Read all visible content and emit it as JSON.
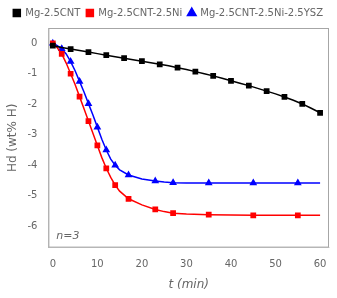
{
  "chart_data": {
    "type": "line",
    "xlabel": "t (min)",
    "ylabel": "Hd (wt% H)",
    "annotation": "n=3",
    "xlim": [
      -1,
      62
    ],
    "ylim": [
      -6.7,
      0.5
    ],
    "xticks": [
      0,
      10,
      20,
      30,
      40,
      50,
      60
    ],
    "yticks": [
      0,
      -1,
      -2,
      -3,
      -4,
      -5,
      -6
    ],
    "grid": false,
    "legend": "upper right",
    "series": [
      {
        "name": "Mg-2.5CNT",
        "color": "#000000",
        "marker": "square",
        "x": [
          0,
          2,
          4,
          6,
          8,
          10,
          12,
          14,
          16,
          18,
          20,
          22,
          24,
          26,
          28,
          30,
          32,
          34,
          36,
          38,
          40,
          42,
          44,
          46,
          48,
          50,
          52,
          54,
          56,
          58,
          60
        ],
        "values": [
          -0.08,
          -0.14,
          -0.19,
          -0.24,
          -0.29,
          -0.34,
          -0.39,
          -0.44,
          -0.49,
          -0.54,
          -0.59,
          -0.64,
          -0.69,
          -0.74,
          -0.8,
          -0.86,
          -0.93,
          -1.0,
          -1.07,
          -1.15,
          -1.23,
          -1.31,
          -1.39,
          -1.48,
          -1.57,
          -1.66,
          -1.76,
          -1.87,
          -1.99,
          -2.13,
          -2.28
        ]
      },
      {
        "name": "Mg-2.5CNT-2.5Ni",
        "color": "#ff0000",
        "marker": "square",
        "x": [
          0,
          1,
          2,
          3,
          4,
          5,
          6,
          7,
          8,
          9,
          10,
          11,
          12,
          13,
          14,
          15,
          17,
          20,
          23,
          25,
          27,
          30,
          35,
          40,
          45,
          50,
          55,
          60
        ],
        "values": [
          0.0,
          -0.15,
          -0.35,
          -0.65,
          -1.0,
          -1.35,
          -1.75,
          -2.15,
          -2.55,
          -2.95,
          -3.35,
          -3.75,
          -4.1,
          -4.4,
          -4.65,
          -4.85,
          -5.1,
          -5.3,
          -5.45,
          -5.52,
          -5.57,
          -5.6,
          -5.62,
          -5.63,
          -5.64,
          -5.64,
          -5.64,
          -5.64
        ]
      },
      {
        "name": "Mg-2.5CNT-2.5Ni-2.5YSZ",
        "color": "#0000ff",
        "marker": "triangle",
        "x": [
          0,
          1,
          2,
          3,
          4,
          5,
          6,
          7,
          8,
          9,
          10,
          11,
          12,
          13,
          14,
          15,
          17,
          20,
          23,
          25,
          27,
          30,
          35,
          40,
          45,
          50,
          55,
          60
        ],
        "values": [
          0.0,
          -0.08,
          -0.18,
          -0.35,
          -0.6,
          -0.9,
          -1.25,
          -1.6,
          -1.98,
          -2.35,
          -2.75,
          -3.15,
          -3.5,
          -3.8,
          -4.0,
          -4.15,
          -4.32,
          -4.45,
          -4.52,
          -4.55,
          -4.57,
          -4.58,
          -4.58,
          -4.58,
          -4.58,
          -4.58,
          -4.58,
          -4.58
        ]
      }
    ]
  }
}
